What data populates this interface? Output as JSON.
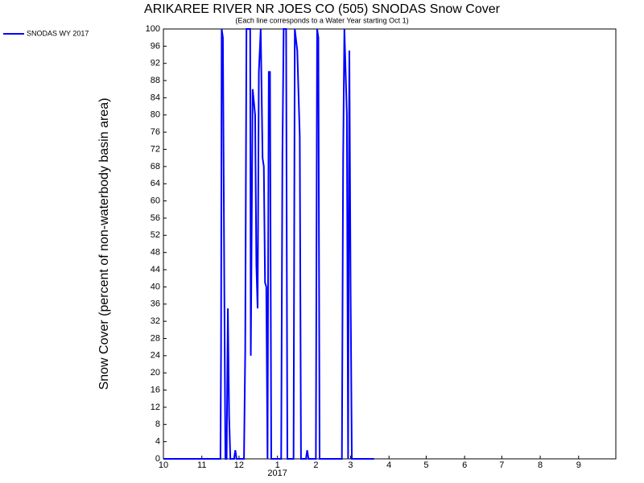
{
  "chart_data": {
    "type": "line",
    "title": "ARIKAREE RIVER NR JOES CO (505) SNODAS Snow Cover",
    "subtitle": "(Each line corresponds to a Water Year starting Oct 1)",
    "y_label": "Snow Cover (percent of non-waterbody basin area)",
    "legend": "top-left",
    "xlim": [
      0,
      365
    ],
    "xticks": [
      {
        "value": 0,
        "label": "10"
      },
      {
        "value": 31,
        "label": "11"
      },
      {
        "value": 61,
        "label": "12"
      },
      {
        "value": 92,
        "label": "1",
        "sublabel": "2017"
      },
      {
        "value": 123,
        "label": "2"
      },
      {
        "value": 151,
        "label": "3"
      },
      {
        "value": 182,
        "label": "4"
      },
      {
        "value": 212,
        "label": "5"
      },
      {
        "value": 243,
        "label": "6"
      },
      {
        "value": 273,
        "label": "7"
      },
      {
        "value": 304,
        "label": "8"
      },
      {
        "value": 335,
        "label": "9"
      }
    ],
    "ylim": [
      0,
      100
    ],
    "yticks": [
      0,
      4,
      8,
      12,
      16,
      20,
      24,
      28,
      32,
      36,
      40,
      44,
      48,
      52,
      56,
      60,
      64,
      68,
      72,
      76,
      80,
      84,
      88,
      92,
      96,
      100
    ],
    "grid": false,
    "x": [
      0,
      46,
      46.5,
      47,
      48,
      49,
      50,
      51,
      52,
      53,
      54,
      57,
      58,
      59,
      65,
      66,
      67,
      70,
      70.5,
      72,
      74,
      75,
      76,
      77,
      78.5,
      80,
      81,
      82,
      83,
      84,
      85,
      86,
      87,
      95,
      96,
      97,
      99,
      100,
      105,
      106,
      108,
      110,
      111,
      115,
      116,
      117,
      123,
      124,
      125,
      126,
      144,
      145,
      146,
      147,
      148,
      149,
      150,
      151,
      152,
      170
    ],
    "series": [
      {
        "name": "SNODAS WY 2017",
        "color": "#0000ff",
        "values": [
          0,
          0,
          25,
          100,
          98,
          46,
          0,
          0,
          35,
          10,
          0,
          0,
          2,
          0,
          0,
          25,
          100,
          100,
          24,
          86,
          80,
          45,
          35,
          90,
          100,
          70,
          68,
          41,
          40,
          0,
          90,
          90,
          0,
          0,
          70,
          100,
          100,
          0,
          0,
          100,
          95,
          75,
          0,
          0,
          2,
          0,
          0,
          100,
          98,
          0,
          0,
          70,
          100,
          90,
          80,
          0,
          95,
          40,
          0,
          0
        ]
      }
    ]
  }
}
